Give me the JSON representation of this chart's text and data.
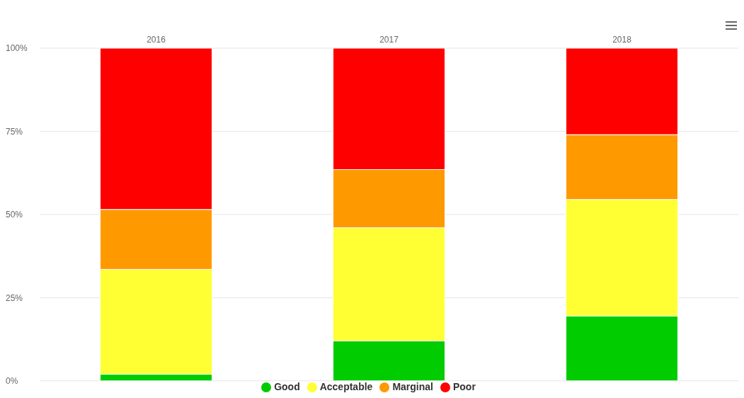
{
  "chart_data": {
    "type": "bar",
    "stacked": true,
    "categories": [
      "2016",
      "2017",
      "2018"
    ],
    "series": [
      {
        "name": "Good",
        "color": "#00cc00",
        "values": [
          2,
          12,
          19.5
        ]
      },
      {
        "name": "Acceptable",
        "color": "#ffff33",
        "values": [
          31.5,
          34,
          35
        ]
      },
      {
        "name": "Marginal",
        "color": "#ff9900",
        "values": [
          18,
          17.5,
          19.5
        ]
      },
      {
        "name": "Poor",
        "color": "#ff0000",
        "values": [
          48.5,
          36.5,
          26
        ]
      }
    ],
    "ylim": [
      0,
      100
    ],
    "yticks": [
      {
        "value": 0,
        "label": "0%"
      },
      {
        "value": 25,
        "label": "25%"
      },
      {
        "value": 50,
        "label": "50%"
      },
      {
        "value": 75,
        "label": "75%"
      },
      {
        "value": 100,
        "label": "100%"
      }
    ],
    "grid": "y",
    "legend": "bottom"
  }
}
